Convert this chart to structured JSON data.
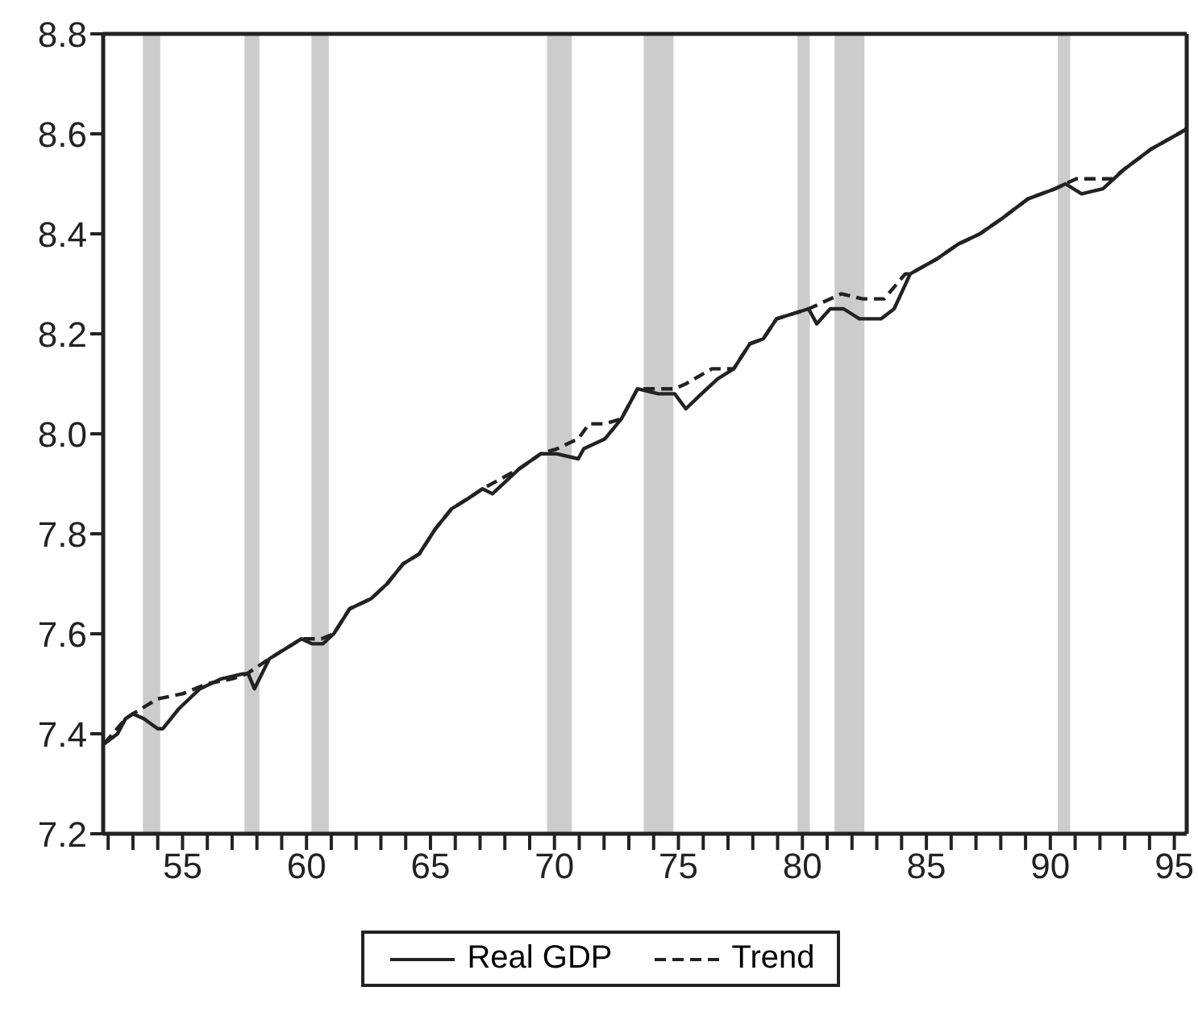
{
  "chart_data": {
    "type": "line",
    "xlim": [
      51.8,
      95.5
    ],
    "xticks": [
      {
        "value": 52,
        "label": null
      },
      {
        "value": 53,
        "label": null
      },
      {
        "value": 54,
        "label": null
      },
      55,
      {
        "value": 56,
        "label": null
      },
      {
        "value": 57,
        "label": null
      },
      {
        "value": 58,
        "label": null
      },
      {
        "value": 59,
        "label": null
      },
      60,
      {
        "value": 61,
        "label": null
      },
      {
        "value": 62,
        "label": null
      },
      {
        "value": 63,
        "label": null
      },
      {
        "value": 64,
        "label": null
      },
      65,
      {
        "value": 66,
        "label": null
      },
      {
        "value": 67,
        "label": null
      },
      {
        "value": 68,
        "label": null
      },
      {
        "value": 69,
        "label": null
      },
      70,
      {
        "value": 71,
        "label": null
      },
      {
        "value": 72,
        "label": null
      },
      {
        "value": 73,
        "label": null
      },
      {
        "value": 74,
        "label": null
      },
      75,
      {
        "value": 76,
        "label": null
      },
      {
        "value": 77,
        "label": null
      },
      {
        "value": 78,
        "label": null
      },
      {
        "value": 79,
        "label": null
      },
      80,
      {
        "value": 81,
        "label": null
      },
      {
        "value": 82,
        "label": null
      },
      {
        "value": 83,
        "label": null
      },
      {
        "value": 84,
        "label": null
      },
      85,
      {
        "value": 86,
        "label": null
      },
      {
        "value": 87,
        "label": null
      },
      {
        "value": 88,
        "label": null
      },
      {
        "value": 89,
        "label": null
      },
      90,
      {
        "value": 91,
        "label": null
      },
      {
        "value": 92,
        "label": null
      },
      {
        "value": 93,
        "label": null
      },
      {
        "value": 94,
        "label": null
      },
      95
    ],
    "ylim": [
      7.2,
      8.8
    ],
    "yticks": [
      {
        "value": 7.2,
        "label": "7.2"
      },
      {
        "value": 7.4,
        "label": "7.4"
      },
      {
        "value": 7.6,
        "label": "7.6"
      },
      {
        "value": 7.8,
        "label": "7.8"
      },
      {
        "value": 8.0,
        "label": "8.0"
      },
      {
        "value": 8.2,
        "label": "8.2"
      },
      {
        "value": 8.4,
        "label": "8.4"
      },
      {
        "value": 8.6,
        "label": "8.6"
      },
      {
        "value": 8.8,
        "label": "8.8"
      }
    ],
    "grid": false,
    "legend": "bottom",
    "series": [
      {
        "name": "Trend",
        "color": "#222222",
        "line_style": "dashed",
        "x": [
          51.84,
          52.7,
          53.0,
          54.0,
          55.0,
          56.0,
          57.0,
          57.6,
          58.5,
          59.15,
          59.8,
          60.6,
          61.1,
          61.74,
          62.6,
          63.25,
          63.9,
          64.55,
          65.2,
          65.85,
          66.5,
          67.1,
          68.58,
          69.45,
          70.1,
          70.96,
          71.4,
          72.04,
          72.7,
          73.35,
          74.2,
          74.85,
          75.3,
          76.35,
          77.23,
          77.88,
          78.42,
          78.96,
          80.25,
          80.7,
          81.56,
          82.43,
          83.3,
          84.15,
          84.35,
          85.43,
          86.3,
          87.16,
          88.03,
          89.1,
          90.18,
          90.61,
          91.05,
          91.9,
          92.5,
          93.0,
          94.08,
          95.16,
          95.5
        ],
        "values": [
          7.38,
          7.43,
          7.44,
          7.47,
          7.48,
          7.5,
          7.51,
          7.52,
          7.55,
          7.57,
          7.59,
          7.59,
          7.6,
          7.65,
          7.67,
          7.7,
          7.74,
          7.76,
          7.81,
          7.85,
          7.87,
          7.89,
          7.93,
          7.96,
          7.97,
          7.99,
          8.02,
          8.02,
          8.03,
          8.09,
          8.09,
          8.09,
          8.1,
          8.13,
          8.13,
          8.18,
          8.19,
          8.23,
          8.25,
          8.26,
          8.28,
          8.27,
          8.27,
          8.32,
          8.32,
          8.35,
          8.38,
          8.4,
          8.43,
          8.47,
          8.49,
          8.5,
          8.51,
          8.51,
          8.51,
          8.53,
          8.57,
          8.6,
          8.61
        ]
      },
      {
        "name": "Real GDP",
        "color": "#222222",
        "line_style": "solid",
        "x": [
          51.84,
          52.38,
          52.7,
          53.0,
          53.45,
          54.0,
          54.2,
          54.85,
          55.7,
          56.57,
          57.44,
          57.65,
          57.9,
          58.5,
          59.15,
          59.8,
          60.23,
          60.66,
          61.1,
          61.74,
          62.6,
          63.25,
          63.9,
          64.55,
          65.2,
          65.85,
          66.5,
          67.1,
          67.5,
          68.58,
          69.45,
          70.1,
          70.96,
          71.18,
          72.04,
          72.7,
          73.35,
          74.2,
          74.85,
          75.3,
          75.93,
          76.58,
          77.23,
          77.88,
          78.42,
          78.96,
          80.25,
          80.58,
          81.12,
          81.66,
          82.3,
          83.17,
          83.7,
          84.35,
          85.43,
          86.3,
          87.16,
          88.03,
          89.1,
          90.18,
          90.61,
          91.26,
          92.12,
          93.0,
          94.08,
          95.16,
          95.5
        ],
        "values": [
          7.38,
          7.4,
          7.43,
          7.44,
          7.43,
          7.41,
          7.41,
          7.45,
          7.49,
          7.51,
          7.52,
          7.52,
          7.49,
          7.55,
          7.57,
          7.59,
          7.58,
          7.58,
          7.6,
          7.65,
          7.67,
          7.7,
          7.74,
          7.76,
          7.81,
          7.85,
          7.87,
          7.89,
          7.88,
          7.93,
          7.96,
          7.96,
          7.95,
          7.97,
          7.99,
          8.03,
          8.09,
          8.08,
          8.08,
          8.05,
          8.08,
          8.11,
          8.13,
          8.18,
          8.19,
          8.23,
          8.25,
          8.22,
          8.25,
          8.25,
          8.23,
          8.23,
          8.25,
          8.32,
          8.35,
          8.38,
          8.4,
          8.43,
          8.47,
          8.49,
          8.5,
          8.48,
          8.49,
          8.53,
          8.57,
          8.6,
          8.61
        ]
      }
    ],
    "bands": [
      {
        "axis": "x",
        "from": 53.4,
        "to": 54.1,
        "color": "#cccccc"
      },
      {
        "axis": "x",
        "from": 57.5,
        "to": 58.1,
        "color": "#cccccc"
      },
      {
        "axis": "x",
        "from": 60.2,
        "to": 60.9,
        "color": "#cccccc"
      },
      {
        "axis": "x",
        "from": 69.7,
        "to": 70.7,
        "color": "#cccccc"
      },
      {
        "axis": "x",
        "from": 73.6,
        "to": 74.8,
        "color": "#cccccc"
      },
      {
        "axis": "x",
        "from": 79.8,
        "to": 80.3,
        "color": "#cccccc"
      },
      {
        "axis": "x",
        "from": 81.3,
        "to": 82.5,
        "color": "#cccccc"
      },
      {
        "axis": "x",
        "from": 90.3,
        "to": 90.8,
        "color": "#cccccc"
      }
    ]
  }
}
